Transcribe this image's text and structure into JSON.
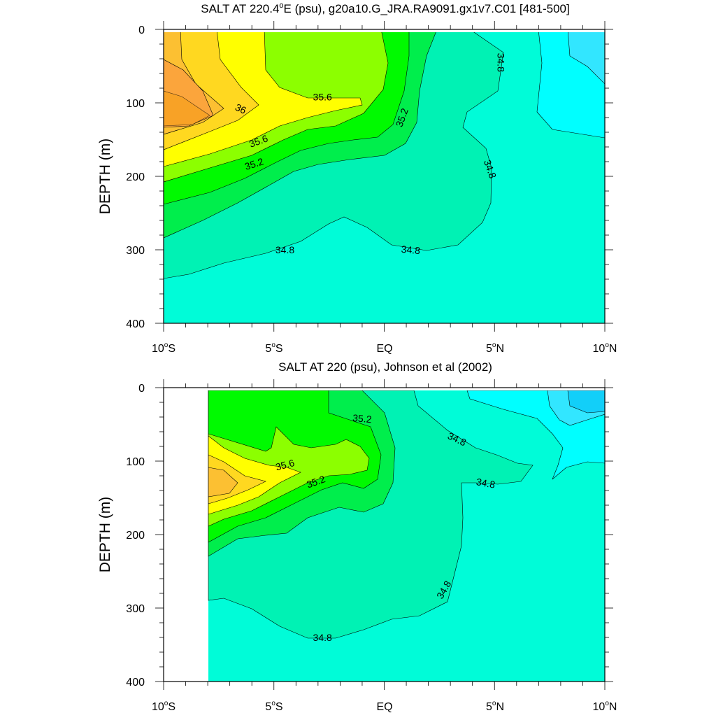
{
  "chart_data": [
    {
      "type": "contour",
      "title": "SALT AT 220.4°E (psu), g20a10.G_JRA.RA9091.gx1v7.C01 [481-500]",
      "title_parts": {
        "pre": "SALT AT 220.4",
        "sup": "o",
        "post": "E (psu), g20a10.G_JRA.RA9091.gx1v7.C01 [481-500]"
      },
      "ylabel": "DEPTH (m)",
      "xlim": [
        -10,
        10
      ],
      "ylim": [
        400,
        0
      ],
      "x_ticks": [
        {
          "value": -10,
          "num": "10",
          "hemi": "S"
        },
        {
          "value": -5,
          "num": "5",
          "hemi": "S"
        },
        {
          "value": 0,
          "num": "EQ",
          "hemi": ""
        },
        {
          "value": 5,
          "num": "5",
          "hemi": "N"
        },
        {
          "value": 10,
          "num": "10",
          "hemi": "N"
        }
      ],
      "y_ticks": [
        "0",
        "100",
        "200",
        "300",
        "400"
      ],
      "y_tick_values": [
        0,
        100,
        200,
        300,
        400
      ],
      "contour_labels": [
        {
          "text": "35.6",
          "lon": -2.8,
          "depth": 92,
          "rot": 0
        },
        {
          "text": "36",
          "lon": -6.5,
          "depth": 108,
          "rot": 25
        },
        {
          "text": "35.6",
          "lon": -5.7,
          "depth": 152,
          "rot": -20
        },
        {
          "text": "35.2",
          "lon": -5.9,
          "depth": 183,
          "rot": -18
        },
        {
          "text": "35.2",
          "lon": 0.8,
          "depth": 120,
          "rot": -70
        },
        {
          "text": "34.8",
          "lon": 5.3,
          "depth": 45,
          "rot": 90
        },
        {
          "text": "34.8",
          "lon": 4.8,
          "depth": 190,
          "rot": 70
        },
        {
          "text": "34.8",
          "lon": -4.5,
          "depth": 300,
          "rot": 0
        },
        {
          "text": "34.8",
          "lon": 1.2,
          "depth": 300,
          "rot": 5
        }
      ]
    },
    {
      "type": "contour",
      "title": "SALT AT 220 (psu), Johnson et al (2002)",
      "ylabel": "DEPTH (m)",
      "xlim": [
        -10,
        10
      ],
      "ylim": [
        400,
        0
      ],
      "x_ticks": [
        {
          "value": -10,
          "num": "10",
          "hemi": "S"
        },
        {
          "value": -5,
          "num": "5",
          "hemi": "S"
        },
        {
          "value": 0,
          "num": "EQ",
          "hemi": ""
        },
        {
          "value": 5,
          "num": "5",
          "hemi": "N"
        },
        {
          "value": 10,
          "num": "10",
          "hemi": "N"
        }
      ],
      "y_ticks": [
        "0",
        "100",
        "200",
        "300",
        "400"
      ],
      "y_tick_values": [
        0,
        100,
        200,
        300,
        400
      ],
      "contour_labels": [
        {
          "text": "35.2",
          "lon": -1.0,
          "depth": 42,
          "rot": 5
        },
        {
          "text": "35.6",
          "lon": -4.5,
          "depth": 105,
          "rot": -15
        },
        {
          "text": "35.2",
          "lon": -3.1,
          "depth": 128,
          "rot": -20
        },
        {
          "text": "34.8",
          "lon": 3.3,
          "depth": 70,
          "rot": 25
        },
        {
          "text": "34.8",
          "lon": 4.6,
          "depth": 130,
          "rot": 10
        },
        {
          "text": "34.8",
          "lon": 2.7,
          "depth": 275,
          "rot": -60
        },
        {
          "text": "34.8",
          "lon": -2.8,
          "depth": 340,
          "rot": 0
        }
      ]
    }
  ],
  "colors": {
    "frame": "#000000",
    "background": "#ffffff",
    "salinity_fill": {
      "below_34.6": "#00ffff",
      "34.6_34.8": "#00fcd8",
      "34.8_35.0": "#00f2b4",
      "35.0_35.2": "#00ee4c",
      "35.2_35.4": "#00fa00",
      "35.4_35.6": "#8cff00",
      "35.6_35.8": "#ffff00",
      "35.8_36.0": "#ffd820",
      "36.0_36.2": "#fcc032",
      "above_36.2": "#fba53c",
      "fresh_34.4": "#32e6ff",
      "fresh_34.2": "#12cff9"
    }
  }
}
